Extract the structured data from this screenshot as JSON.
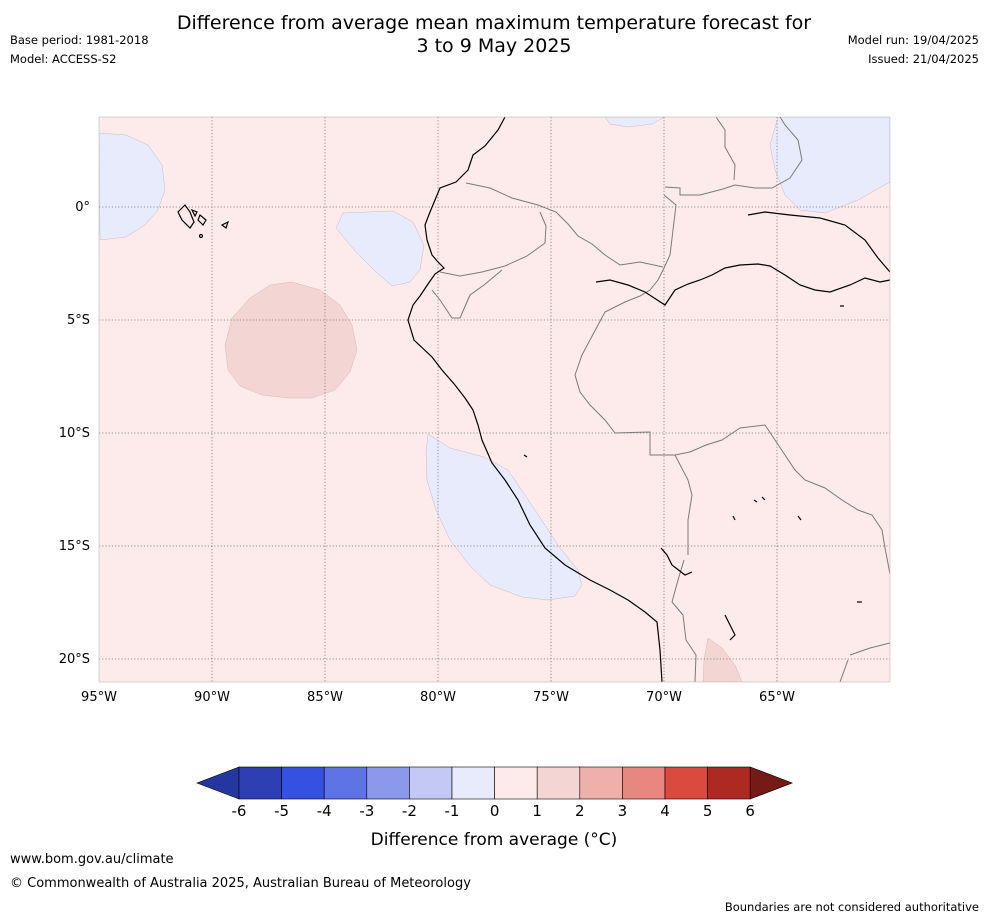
{
  "title": {
    "line1": "Difference from average mean maximum temperature forecast for",
    "line2": "3 to 9 May 2025"
  },
  "meta": {
    "base_period": "Base period: 1981-2018",
    "model": "Model: ACCESS-S2",
    "model_run": "Model run: 19/04/2025",
    "issued": "Issued: 21/04/2025"
  },
  "map": {
    "lon_labels": [
      "95°W",
      "90°W",
      "85°W",
      "80°W",
      "75°W",
      "70°W",
      "65°W"
    ],
    "lat_labels": [
      "0°",
      "5°S",
      "10°S",
      "15°S",
      "20°S"
    ],
    "lon_range": [
      -95,
      -60
    ],
    "lat_range": [
      -21,
      4
    ]
  },
  "colorbar": {
    "ticks": [
      "-6",
      "-5",
      "-4",
      "-3",
      "-2",
      "-1",
      "0",
      "1",
      "2",
      "3",
      "4",
      "5",
      "6"
    ],
    "colors": [
      "#25379f",
      "#2e3fb4",
      "#3551e0",
      "#5e73e6",
      "#8a99ec",
      "#c3c9f4",
      "#e8ebfb",
      "#fcebea",
      "#f3d6d4",
      "#efb0aa",
      "#e8877f",
      "#db4a3e",
      "#ad2a22",
      "#761a17"
    ],
    "label": "Difference from average (°C)"
  },
  "footer": {
    "website": "www.bom.gov.au/climate",
    "copyright": "© Commonwealth of Australia 2025, Australian Bureau of Meteorology",
    "disclaimer": "Boundaries are not considered authoritative"
  }
}
